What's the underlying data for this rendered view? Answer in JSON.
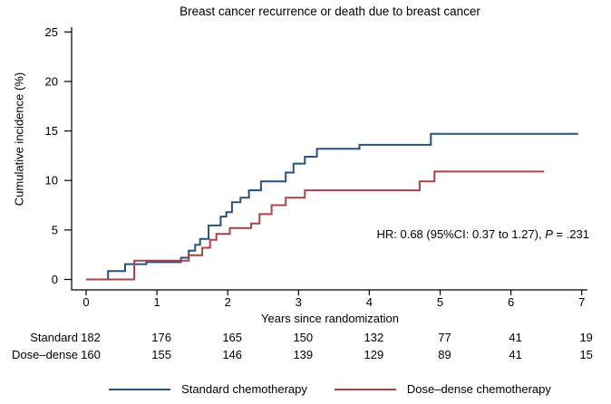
{
  "title": "Breast cancer recurrence or death due to breast cancer",
  "chart_data": {
    "type": "line",
    "subtype": "step-cumulative-incidence",
    "title": "Breast cancer recurrence or death due to breast cancer",
    "xlabel": "Years since randomization",
    "ylabel": "Cumulative incidence (%)",
    "xlim": [
      0,
      7
    ],
    "ylim": [
      0,
      25
    ],
    "xticks": [
      "0",
      "1",
      "2",
      "3",
      "4",
      "5",
      "6",
      "7"
    ],
    "yticks": [
      "0",
      "5",
      "10",
      "15",
      "20",
      "25"
    ],
    "grid": "off",
    "legend_position": "bottom",
    "annotation": "HR: 0.68 (95%CI: 0.37 to 1.27), P = .231",
    "series": [
      {
        "name": "Standard chemotherapy",
        "slug": "standard",
        "color": "#2A5178",
        "start": [
          0,
          0
        ],
        "end_x": 6.95,
        "steps": [
          [
            0.31,
            0.85
          ],
          [
            0.55,
            1.55
          ],
          [
            0.85,
            1.75
          ],
          [
            1.34,
            2.2
          ],
          [
            1.45,
            2.9
          ],
          [
            1.54,
            3.5
          ],
          [
            1.61,
            4.1
          ],
          [
            1.73,
            5.45
          ],
          [
            1.9,
            6.35
          ],
          [
            1.98,
            6.8
          ],
          [
            2.06,
            7.8
          ],
          [
            2.18,
            8.25
          ],
          [
            2.3,
            9.0
          ],
          [
            2.47,
            9.9
          ],
          [
            2.82,
            10.8
          ],
          [
            2.93,
            11.7
          ],
          [
            3.09,
            12.4
          ],
          [
            3.26,
            13.2
          ],
          [
            3.86,
            13.6
          ],
          [
            4.87,
            14.7
          ]
        ]
      },
      {
        "name": "Dose–dense chemotherapy",
        "slug": "dose-dense",
        "color": "#A6444A",
        "start": [
          0,
          0
        ],
        "end_x": 6.47,
        "steps": [
          [
            0.68,
            1.9
          ],
          [
            1.45,
            2.45
          ],
          [
            1.64,
            3.2
          ],
          [
            1.75,
            4.0
          ],
          [
            1.84,
            4.6
          ],
          [
            2.03,
            5.2
          ],
          [
            2.33,
            5.65
          ],
          [
            2.45,
            6.6
          ],
          [
            2.62,
            7.5
          ],
          [
            2.82,
            8.25
          ],
          [
            3.09,
            9.0
          ],
          [
            4.71,
            9.9
          ],
          [
            4.92,
            10.9
          ]
        ]
      }
    ]
  },
  "annotation_parts": {
    "text": "HR: 0.68 (95%CI: 0.37 to 1.27), ",
    "p_symbol": "P",
    "p_value": " = .231"
  },
  "risk_table": {
    "rows": [
      {
        "label": "Standard",
        "counts": [
          "182",
          "176",
          "165",
          "150",
          "132",
          "77",
          "41",
          "19"
        ]
      },
      {
        "label": "Dose–dense",
        "counts": [
          "160",
          "155",
          "146",
          "139",
          "129",
          "89",
          "41",
          "15"
        ]
      }
    ]
  },
  "legend": {
    "entries": [
      {
        "label": "Standard chemotherapy",
        "color": "#2A5178"
      },
      {
        "label": "Dose–dense chemotherapy",
        "color": "#A6444A"
      }
    ]
  },
  "colors": {
    "standard": "#2A5178",
    "dose_dense": "#A6444A",
    "axis": "#000000"
  }
}
